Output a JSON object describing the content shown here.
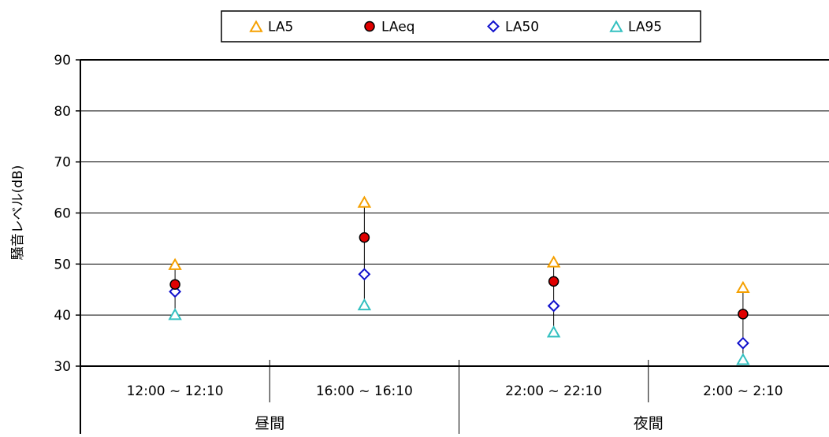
{
  "chart_data": {
    "type": "scatter",
    "title": "",
    "xlabel": "",
    "ylabel": "騒音レベル(dB)",
    "ylim": [
      30,
      90
    ],
    "yticks": [
      30,
      40,
      50,
      60,
      70,
      80,
      90
    ],
    "grid": true,
    "legend_position": "top",
    "categories": [
      "12:00 ~ 12:10",
      "16:00 ~ 16:10",
      "22:00 ~ 22:10",
      "2:00 ~ 2:10"
    ],
    "groups": [
      {
        "label": "昼間",
        "span": [
          0,
          1
        ]
      },
      {
        "label": "夜間",
        "span": [
          2,
          3
        ]
      }
    ],
    "series": [
      {
        "name": "LA5",
        "marker": "triangle",
        "color": "#f5a000",
        "values": [
          49.8,
          62.0,
          50.3,
          45.3
        ]
      },
      {
        "name": "LAeq",
        "marker": "circle",
        "color": "#e00000",
        "values": [
          46.0,
          55.2,
          46.6,
          40.2
        ]
      },
      {
        "name": "LA50",
        "marker": "diamond",
        "color": "#1010cc",
        "values": [
          44.6,
          48.0,
          41.8,
          34.5
        ]
      },
      {
        "name": "LA95",
        "marker": "triangle",
        "color": "#33c0c0",
        "values": [
          40.0,
          41.9,
          36.6,
          31.2
        ]
      }
    ]
  }
}
